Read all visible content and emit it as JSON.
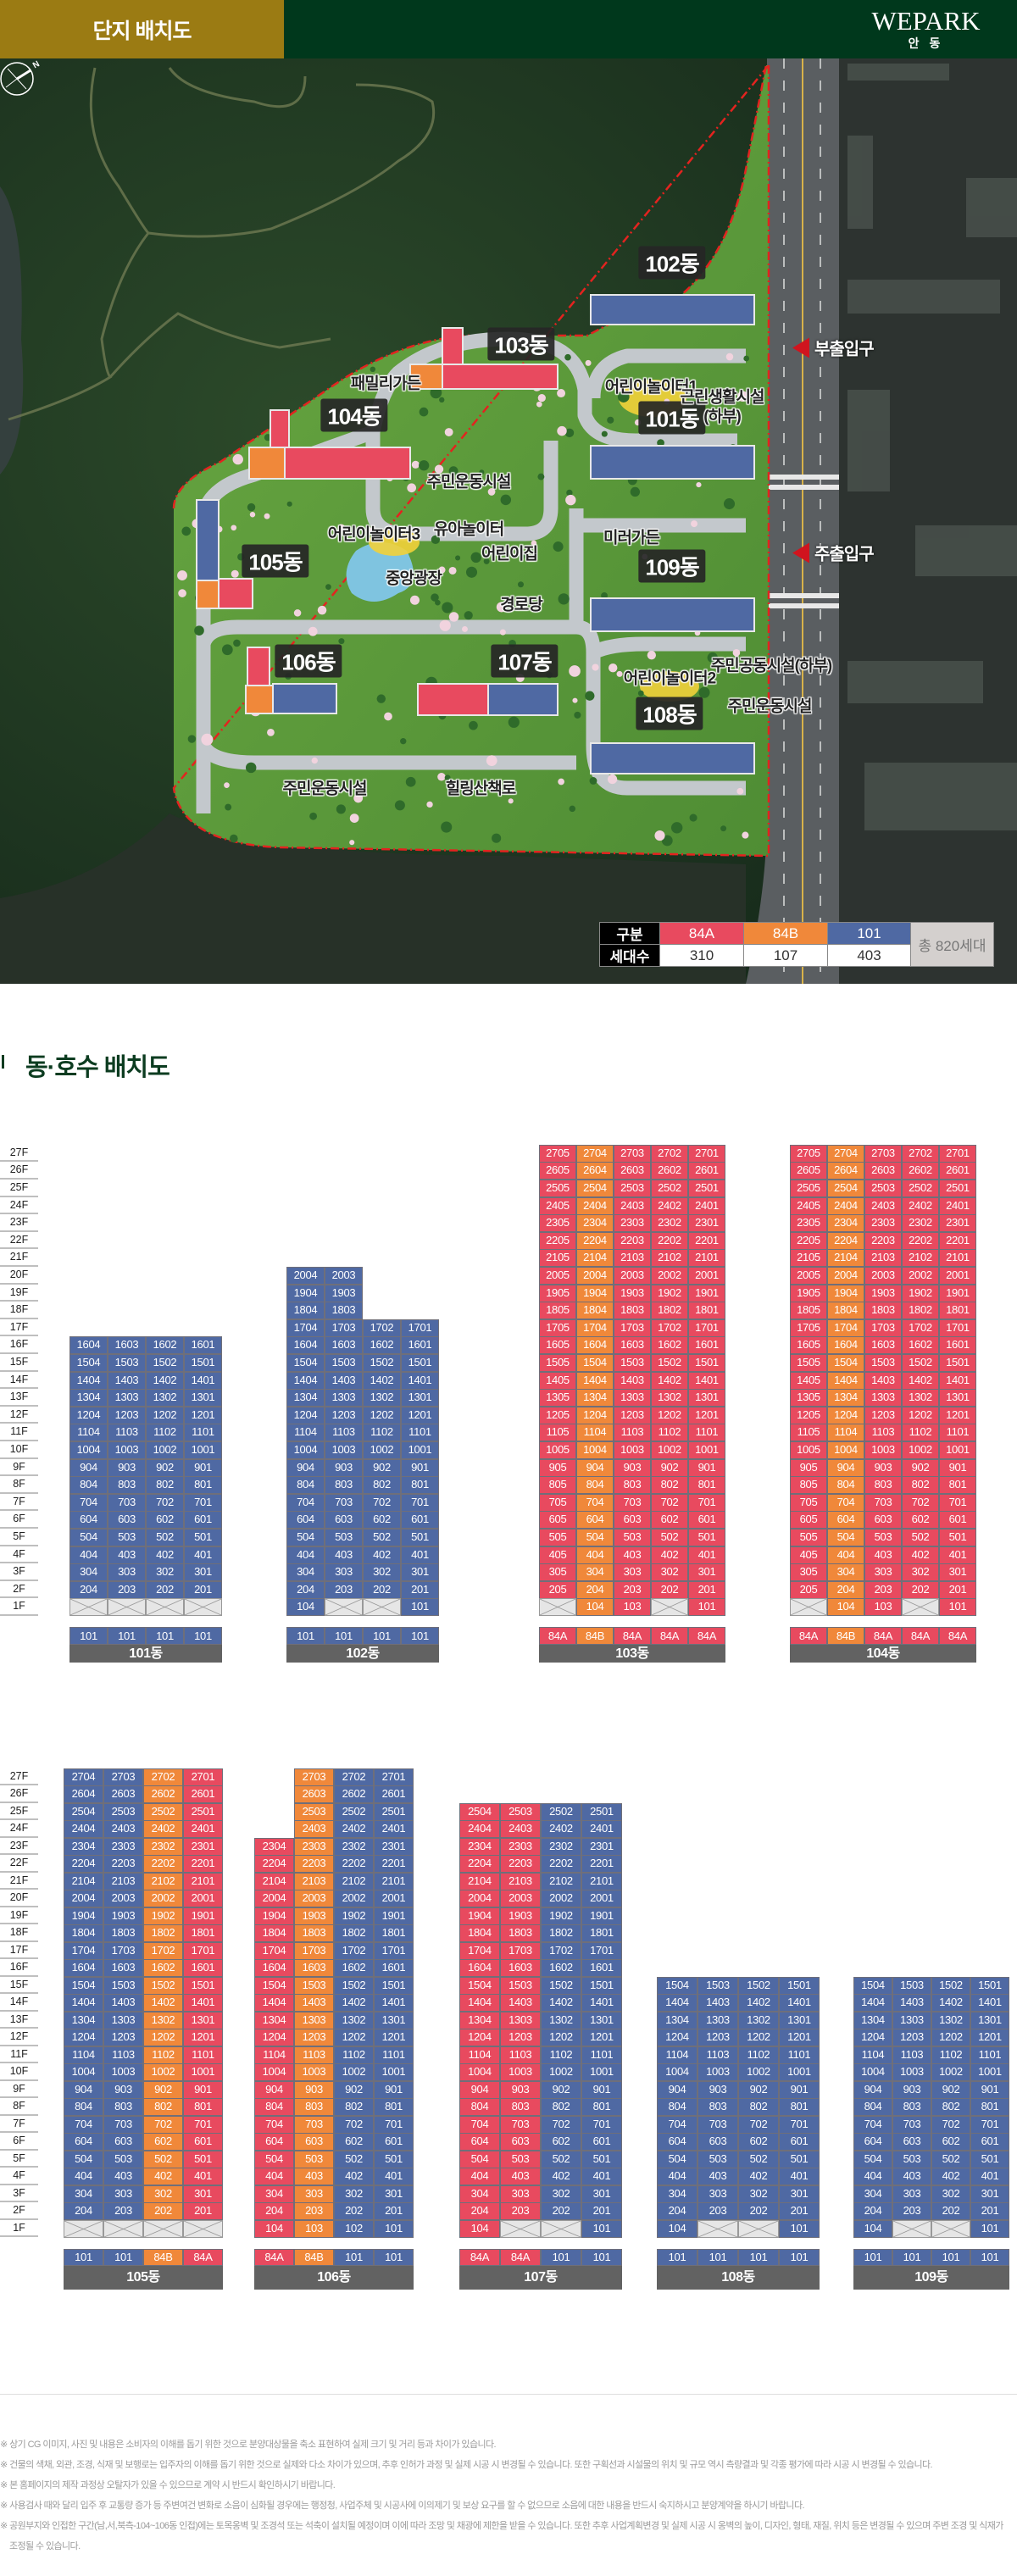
{
  "header": {
    "title": "단지 배치도",
    "brand": "WEPARK",
    "brand_sub": "안 동"
  },
  "site_plan": {
    "compass_label": "N",
    "buildings": [
      "102동",
      "103동",
      "104동",
      "101동",
      "105동",
      "109동",
      "106동",
      "107동",
      "108동"
    ],
    "facilities": [
      "패밀리가든",
      "어린이놀이터1",
      "근린생활시설",
      "(하부)",
      "주민운동시설",
      "어린이놀이터3",
      "유아놀이터",
      "어린이집",
      "미러가든",
      "중앙광장",
      "경로당",
      "주민공동시설(하부)",
      "어린이놀이터2",
      "주민운동시설",
      "주민운동시설",
      "힐링산책로"
    ],
    "entrances": [
      "부출입구",
      "주출입구"
    ]
  },
  "legend": {
    "header_label": "구분",
    "count_label": "세대수",
    "types": [
      {
        "name": "84A",
        "count": "310",
        "color": "#e84a5f"
      },
      {
        "name": "84B",
        "count": "107",
        "color": "#f0883a"
      },
      {
        "name": "101",
        "count": "403",
        "color": "#4f69a3"
      }
    ],
    "total": "총 820세대"
  },
  "section_title": "동·호수 배치도",
  "colors": {
    "84A": "#e84a5f",
    "84B": "#f0883a",
    "101": "#4f69a3",
    "empty": "#e6e6e6",
    "name_bar": "#626262"
  },
  "floor_labels": [
    "27F",
    "26F",
    "25F",
    "24F",
    "23F",
    "22F",
    "21F",
    "20F",
    "19F",
    "18F",
    "17F",
    "16F",
    "15F",
    "14F",
    "13F",
    "12F",
    "11F",
    "10F",
    "9F",
    "8F",
    "7F",
    "6F",
    "5F",
    "4F",
    "3F",
    "2F",
    "1F"
  ],
  "buildings": [
    {
      "name": "101동",
      "types": [
        "101",
        "101",
        "101",
        "101"
      ],
      "rows": [
        "1604 1603 1602 1601",
        "1504 1503 1502 1501",
        "1404 1403 1402 1401",
        "1304 1303 1302 1301",
        "1204 1203 1202 1201",
        "1104 1103 1102 1101",
        "1004 1003 1002 1001",
        "904 903 902 901",
        "804 803 802 801",
        "704 703 702 701",
        "604 603 602 601",
        "504 503 502 501",
        "404 403 402 401",
        "304 303 302 301",
        "204 203 202 201",
        "x x x x"
      ]
    },
    {
      "name": "102동",
      "types": [
        "101",
        "101",
        "101",
        "101"
      ],
      "rows": [
        "2004 2003 - -",
        "1904 1903 - -",
        "1804 1803 - -",
        "1704 1703 1702 1701",
        "1604 1603 1602 1601",
        "1504 1503 1502 1501",
        "1404 1403 1402 1401",
        "1304 1303 1302 1301",
        "1204 1203 1202 1201",
        "1104 1103 1102 1101",
        "1004 1003 1002 1001",
        "904 903 902 901",
        "804 803 802 801",
        "704 703 702 701",
        "604 603 602 601",
        "504 503 502 501",
        "404 403 402 401",
        "304 303 302 301",
        "204 203 202 201",
        "104 x x 101"
      ]
    },
    {
      "name": "103동",
      "types": [
        "84A",
        "84B",
        "84A",
        "84A",
        "84A"
      ],
      "rows": [
        "2705 2704 2703 2702 2701",
        "2605 2604 2603 2602 2601",
        "2505 2504 2503 2502 2501",
        "2405 2404 2403 2402 2401",
        "2305 2304 2303 2302 2301",
        "2205 2204 2203 2202 2201",
        "2105 2104 2103 2102 2101",
        "2005 2004 2003 2002 2001",
        "1905 1904 1903 1902 1901",
        "1805 1804 1803 1802 1801",
        "1705 1704 1703 1702 1701",
        "1605 1604 1603 1602 1601",
        "1505 1504 1503 1502 1501",
        "1405 1404 1403 1402 1401",
        "1305 1304 1303 1302 1301",
        "1205 1204 1203 1202 1201",
        "1105 1104 1103 1102 1101",
        "1005 1004 1003 1002 1001",
        "905 904 903 902 901",
        "805 804 803 802 801",
        "705 704 703 702 701",
        "605 604 603 602 601",
        "505 504 503 502 501",
        "405 404 403 402 401",
        "305 304 303 302 301",
        "205 204 203 202 201",
        "x 104 103 x 101"
      ]
    },
    {
      "name": "104동",
      "types": [
        "84A",
        "84B",
        "84A",
        "84A",
        "84A"
      ],
      "rows": [
        "2705 2704 2703 2702 2701",
        "2605 2604 2603 2602 2601",
        "2505 2504 2503 2502 2501",
        "2405 2404 2403 2402 2401",
        "2305 2304 2303 2302 2301",
        "2205 2204 2203 2202 2201",
        "2105 2104 2103 2102 2101",
        "2005 2004 2003 2002 2001",
        "1905 1904 1903 1902 1901",
        "1805 1804 1803 1802 1801",
        "1705 1704 1703 1702 1701",
        "1605 1604 1603 1602 1601",
        "1505 1504 1503 1502 1501",
        "1405 1404 1403 1402 1401",
        "1305 1304 1303 1302 1301",
        "1205 1204 1203 1202 1201",
        "1105 1104 1103 1102 1101",
        "1005 1004 1003 1002 1001",
        "905 904 903 902 901",
        "805 804 803 802 801",
        "705 704 703 702 701",
        "605 604 603 602 601",
        "505 504 503 502 501",
        "405 404 403 402 401",
        "305 304 303 302 301",
        "205 204 203 202 201",
        "x 104 103 x 101"
      ]
    },
    {
      "name": "105동",
      "types": [
        "101",
        "101",
        "84B",
        "84A"
      ],
      "rows": [
        "2704 2703 2702 2701",
        "2604 2603 2602 2601",
        "2504 2503 2502 2501",
        "2404 2403 2402 2401",
        "2304 2303 2302 2301",
        "2204 2203 2202 2201",
        "2104 2103 2102 2101",
        "2004 2003 2002 2001",
        "1904 1903 1902 1901",
        "1804 1803 1802 1801",
        "1704 1703 1702 1701",
        "1604 1603 1602 1601",
        "1504 1503 1502 1501",
        "1404 1403 1402 1401",
        "1304 1303 1302 1301",
        "1204 1203 1202 1201",
        "1104 1103 1102 1101",
        "1004 1003 1002 1001",
        "904 903 902 901",
        "804 803 802 801",
        "704 703 702 701",
        "604 603 602 601",
        "504 503 502 501",
        "404 403 402 401",
        "304 303 302 301",
        "204 203 202 201",
        "x x x x"
      ]
    },
    {
      "name": "106동",
      "types": [
        "84A",
        "84B",
        "101",
        "101"
      ],
      "rows": [
        "- 2703 2702 2701",
        "- 2603 2602 2601",
        "- 2503 2502 2501",
        "- 2403 2402 2401",
        "2304 2303 2302 2301",
        "2204 2203 2202 2201",
        "2104 2103 2102 2101",
        "2004 2003 2002 2001",
        "1904 1903 1902 1901",
        "1804 1803 1802 1801",
        "1704 1703 1702 1701",
        "1604 1603 1602 1601",
        "1504 1503 1502 1501",
        "1404 1403 1402 1401",
        "1304 1303 1302 1301",
        "1204 1203 1202 1201",
        "1104 1103 1102 1101",
        "1004 1003 1002 1001",
        "904 903 902 901",
        "804 803 802 801",
        "704 703 702 701",
        "604 603 602 601",
        "504 503 502 501",
        "404 403 402 401",
        "304 303 302 301",
        "204 203 202 201",
        "104 103 102 101"
      ]
    },
    {
      "name": "107동",
      "types": [
        "84A",
        "84A",
        "101",
        "101"
      ],
      "rows": [
        "2504 2503 2502 2501",
        "2404 2403 2402 2401",
        "2304 2303 2302 2301",
        "2204 2203 2202 2201",
        "2104 2103 2102 2101",
        "2004 2003 2002 2001",
        "1904 1903 1902 1901",
        "1804 1803 1802 1801",
        "1704 1703 1702 1701",
        "1604 1603 1602 1601",
        "1504 1503 1502 1501",
        "1404 1403 1402 1401",
        "1304 1303 1302 1301",
        "1204 1203 1202 1201",
        "1104 1103 1102 1101",
        "1004 1003 1002 1001",
        "904 903 902 901",
        "804 803 802 801",
        "704 703 702 701",
        "604 603 602 601",
        "504 503 502 501",
        "404 403 402 401",
        "304 303 302 301",
        "204 203 202 201",
        "104 x x 101"
      ]
    },
    {
      "name": "108동",
      "types": [
        "101",
        "101",
        "101",
        "101"
      ],
      "rows": [
        "1504 1503 1502 1501",
        "1404 1403 1402 1401",
        "1304 1303 1302 1301",
        "1204 1203 1202 1201",
        "1104 1103 1102 1101",
        "1004 1003 1002 1001",
        "904 903 902 901",
        "804 803 802 801",
        "704 703 702 701",
        "604 603 602 601",
        "504 503 502 501",
        "404 403 402 401",
        "304 303 302 301",
        "204 203 202 201",
        "104 x x 101"
      ]
    },
    {
      "name": "109동",
      "types": [
        "101",
        "101",
        "101",
        "101"
      ],
      "rows": [
        "1504 1503 1502 1501",
        "1404 1403 1402 1401",
        "1304 1303 1302 1301",
        "1204 1203 1202 1201",
        "1104 1103 1102 1101",
        "1004 1003 1002 1001",
        "904 903 902 901",
        "804 803 802 801",
        "704 703 702 701",
        "604 603 602 601",
        "504 503 502 501",
        "404 403 402 401",
        "304 303 302 301",
        "204 203 202 201",
        "104 x x 101"
      ]
    }
  ],
  "notes": [
    "※ 상기 CG 이미지, 사진 및 내용은 소비자의 이해를 돕기 위한 것으로 분양대상물을 축소 표현하여 실제 크기 및 거리 등과 차이가 있습니다.",
    "※ 건물의 색채, 외관, 조경, 식재 및 보행로는 입주자의 이해를 돕기 위한 것으로 실제와 다소 차이가 있으며, 추후 인허가 과정 및 실제 시공 시 변경될 수 있습니다. 또한 구획선과 시설물의 위치 및 규모 역시 측량결과 및 각종 평가에 따라 시공 시 변경될 수 있습니다.",
    "※ 본 홈페이지의 제작 과정상 오탈자가 있을 수 있으므로 계약 시 반드시 확인하시기 바랍니다.",
    "※ 사용검사 때와 달리 입주 후 교통량 증가 등 주변여건 변화로 소음이 심화될 경우에는 행정청, 사업주체 및 시공사에 이의제기 및 보상 요구를 할 수 없으므로 소음에 대한 내용을 반드시 숙지하시고 분양계약을 하시기 바랍니다.",
    "※ 공원부지와 인접한 구간(남,서,북측-104~106동 인접)에는 토목옹벽 및 조경석 또는 석축이 설치될 예정이며 이에 따라 조망 및 채광에 제한을 받을 수 있습니다. 또한 추후 사업계획변경 및 실제 시공 시 옹벽의 높이, 디자인, 형태, 재질, 위치 등은 변경될 수 있으며 주변 조경 및 식재가 조정될 수 있습니다."
  ]
}
